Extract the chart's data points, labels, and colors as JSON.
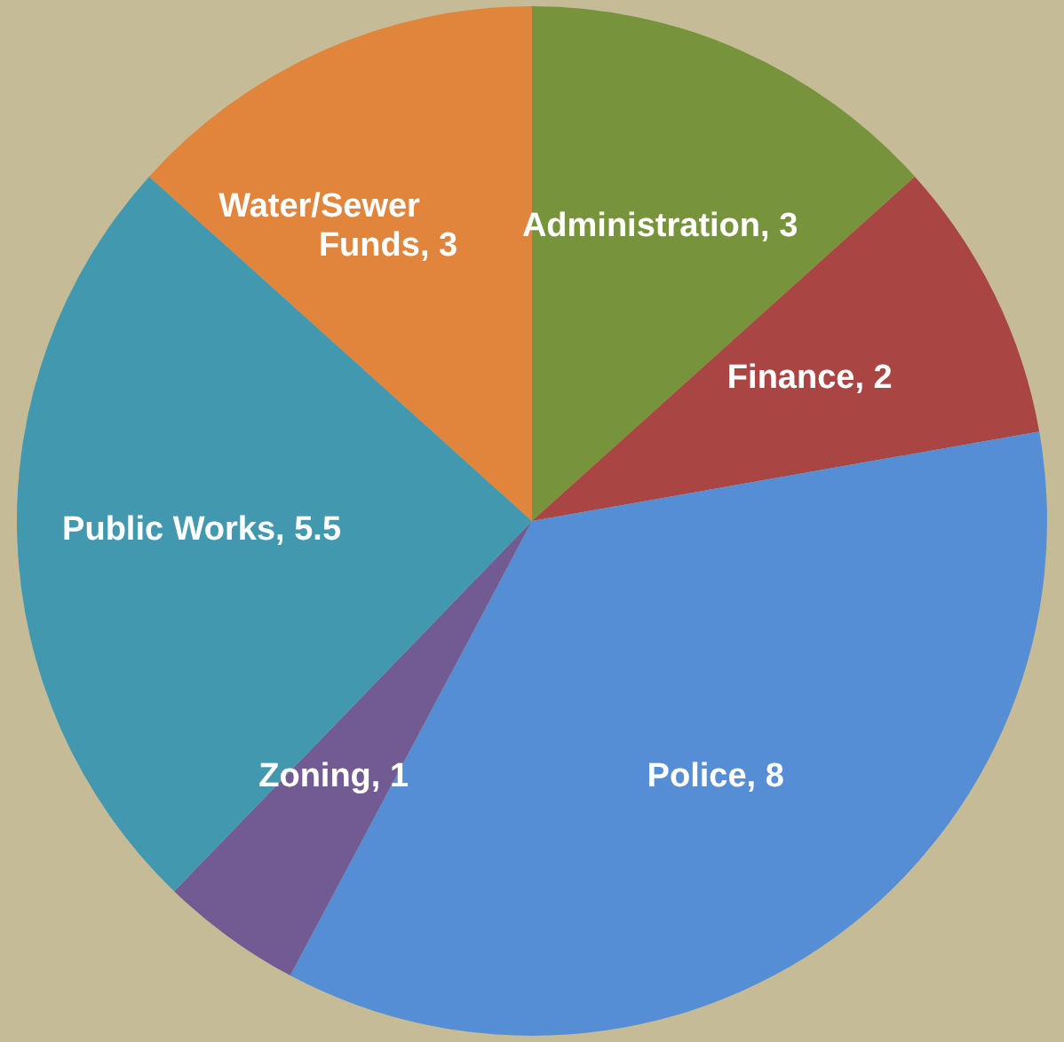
{
  "chart_data": {
    "type": "pie",
    "categories": [
      "Administration",
      "Finance",
      "Police",
      "Zoning",
      "Public Works",
      "Water/Sewer Funds"
    ],
    "values": [
      3,
      2,
      8,
      1,
      5.5,
      3
    ],
    "value_labels": [
      ", 3",
      ", 2",
      ", 8",
      ", 1",
      ", 5.5",
      ", 3"
    ],
    "colors": [
      "#77933c",
      "#a94643",
      "#558ed5",
      "#725a92",
      "#4298af",
      "#e0853b"
    ]
  }
}
